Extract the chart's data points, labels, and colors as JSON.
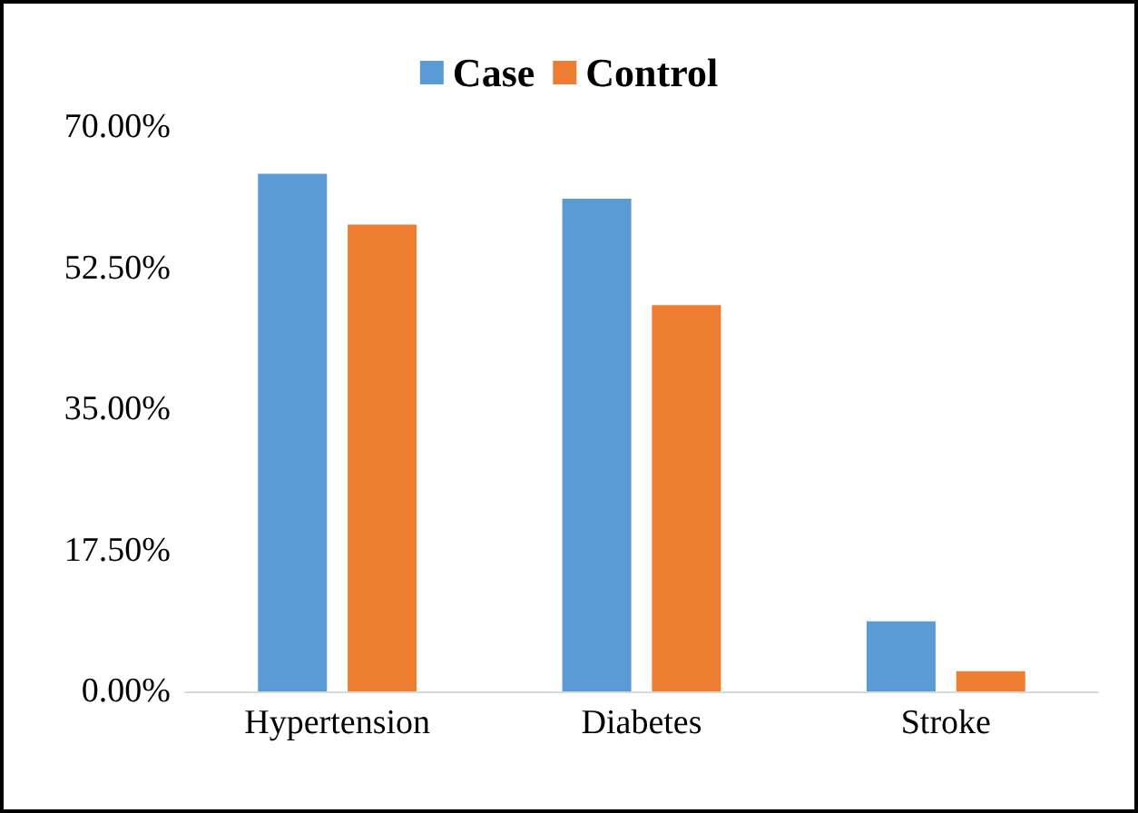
{
  "chart_data": {
    "type": "bar",
    "categories": [
      "Hypertension",
      "Diabetes",
      "Stroke"
    ],
    "series": [
      {
        "name": "Case",
        "color": "#5b9bd5",
        "values": [
          64.2,
          61.1,
          8.7
        ]
      },
      {
        "name": "Control",
        "color": "#ed7d31",
        "values": [
          57.9,
          47.9,
          2.5
        ]
      }
    ],
    "ylim": [
      0,
      70
    ],
    "yticks": [
      {
        "value": 0,
        "label": "0.00%"
      },
      {
        "value": 17.5,
        "label": "17.50%"
      },
      {
        "value": 35,
        "label": "35.00%"
      },
      {
        "value": 52.5,
        "label": "52.50%"
      },
      {
        "value": 70,
        "label": "70.00%"
      }
    ],
    "grid": false,
    "legend": "top"
  }
}
